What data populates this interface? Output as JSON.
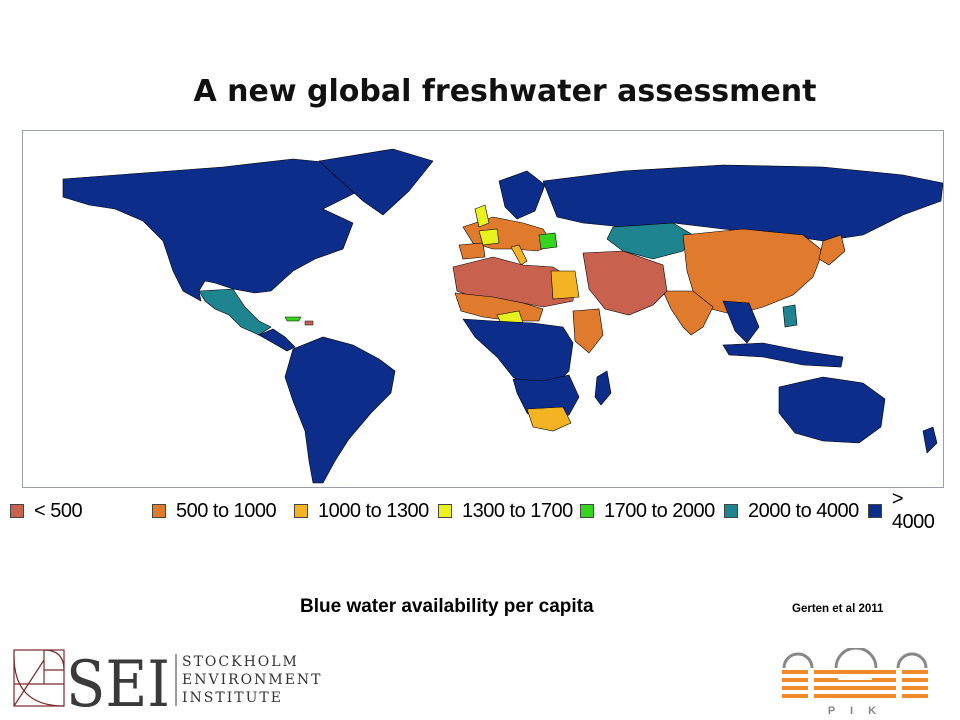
{
  "title": "A new global freshwater assessment",
  "subtitle": "Blue water availability per capita",
  "citation": "Gerten et al 2011",
  "legend": [
    {
      "label": "< 500",
      "color": "#c8624f"
    },
    {
      "label": "500 to 1000",
      "color": "#e07a2c"
    },
    {
      "label": "1000 to 1300",
      "color": "#f4b323"
    },
    {
      "label": "1300 to 1700",
      "color": "#e8f21e"
    },
    {
      "label": "1700 to 2000",
      "color": "#35d41f"
    },
    {
      "label": "2000 to 4000",
      "color": "#1e8490"
    },
    {
      "label": "> 4000",
      "color": "#0d2d8a"
    }
  ],
  "logos": {
    "sei": {
      "letters": "SEI",
      "line1": "STOCKHOLM",
      "line2": "ENVIRONMENT",
      "line3": "INSTITUTE"
    },
    "pik": {
      "letters": "P I K"
    }
  }
}
